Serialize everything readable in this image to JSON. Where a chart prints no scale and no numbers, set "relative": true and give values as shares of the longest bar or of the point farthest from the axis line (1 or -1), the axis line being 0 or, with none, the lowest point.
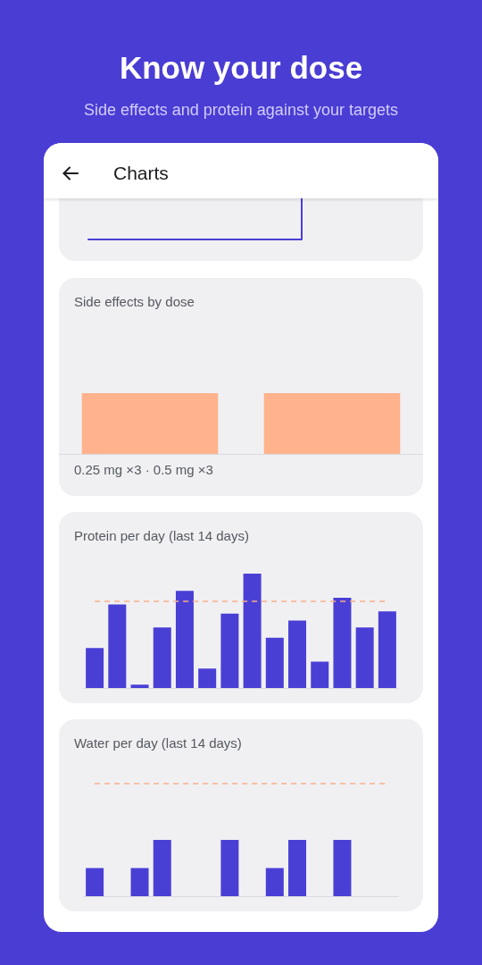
{
  "chart_data": [
    {
      "type": "other",
      "title": "Know your dose",
      "subtitle": "Side effects and protein against your targets",
      "annotations": [
        "Charts"
      ]
    },
    {
      "type": "step",
      "categories": [
        null,
        null
      ],
      "values": [
        0,
        1
      ],
      "relative": true,
      "color": "#4a3fd5"
    },
    {
      "type": "bar",
      "title": "Side effects by dose",
      "xlabel": "0.25 mg ×3 · 0.5 mg ×3",
      "categories": [
        null,
        null
      ],
      "values": [
        1,
        1
      ],
      "relative": true,
      "color": "#ffb28b"
    },
    {
      "type": "bar",
      "title": "Protein per day (last 14 days)",
      "categories": [
        null,
        null,
        null,
        null,
        null,
        null,
        null,
        null,
        null,
        null,
        null,
        null,
        null,
        null
      ],
      "values": [
        0.35,
        0.73,
        0.03,
        0.53,
        0.85,
        0.17,
        0.65,
        1,
        0.44,
        0.59,
        0.23,
        0.79,
        0.53,
        0.67
      ],
      "relative": true,
      "color": "#4a3fd5",
      "ref_lines": [
        {
          "axis": "y",
          "value": 0.76,
          "color": "#f7ae8a",
          "line_style": "dashed"
        }
      ]
    },
    {
      "type": "bar",
      "title": "Water per day (last 14 days)",
      "categories": [
        null,
        null,
        null,
        null,
        null,
        null,
        null,
        null,
        null,
        null,
        null,
        null,
        null,
        null
      ],
      "values": [
        0.5,
        null,
        0.5,
        1,
        null,
        null,
        1,
        null,
        0.5,
        1,
        null,
        1,
        null,
        null
      ],
      "relative": true,
      "color": "#4a3fd5",
      "ref_lines": [
        {
          "axis": "y",
          "value": 2.0,
          "color": "#f7ae8a",
          "line_style": "dashed"
        }
      ]
    }
  ]
}
